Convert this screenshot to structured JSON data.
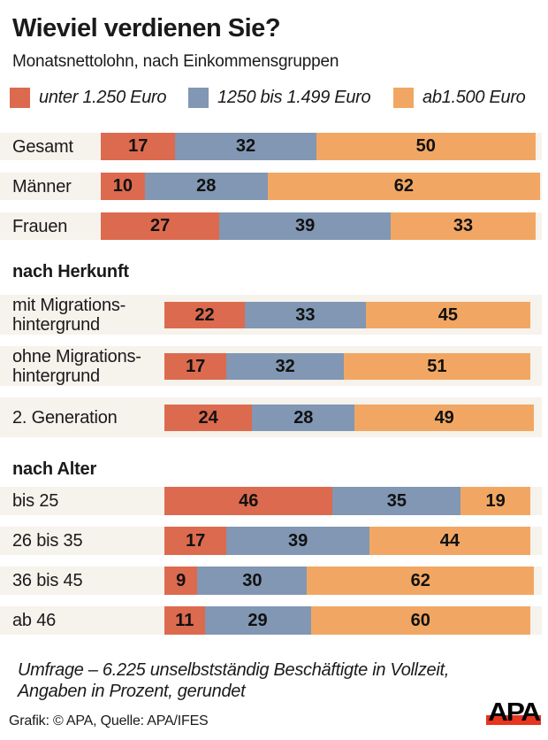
{
  "header": {
    "title": "Wieviel verdienen Sie?",
    "subtitle": "Monatsnettolohn, nach Einkommensgruppen"
  },
  "legend": {
    "items": [
      {
        "label": "unter 1.250 Euro",
        "color": "#dc6a4f"
      },
      {
        "label": "1250 bis 1.499 Euro",
        "color": "#8197b3"
      },
      {
        "label": "ab1.500 Euro",
        "color": "#f1a763"
      }
    ]
  },
  "chart_data": {
    "type": "bar",
    "subtype": "horizontal-stacked",
    "unit": "percent",
    "xlim": [
      0,
      100
    ],
    "title": "Wieviel verdienen Sie?",
    "subtitle": "Monatsnettolohn, nach Einkommensgruppen",
    "legend_position": "top",
    "series_names": [
      "unter 1.250 Euro",
      "1250 bis 1.499 Euro",
      "ab1.500 Euro"
    ],
    "series_colors": [
      "#dc6a4f",
      "#8197b3",
      "#f1a763"
    ],
    "groups": [
      {
        "heading": "",
        "rows": [
          {
            "label": "Gesamt",
            "label_lines": [
              "Gesamt"
            ],
            "values": [
              17,
              32,
              50
            ]
          },
          {
            "label": "Männer",
            "label_lines": [
              "Männer"
            ],
            "values": [
              10,
              28,
              62
            ]
          },
          {
            "label": "Frauen",
            "label_lines": [
              "Frauen"
            ],
            "values": [
              27,
              39,
              33
            ]
          }
        ]
      },
      {
        "heading": "nach Herkunft",
        "rows": [
          {
            "label": "mit Migrationshintergrund",
            "label_lines": [
              "mit Migrations-",
              "hintergrund"
            ],
            "values": [
              22,
              33,
              45
            ]
          },
          {
            "label": "ohne Migrationshintergrund",
            "label_lines": [
              "ohne Migrations-",
              "hintergrund"
            ],
            "values": [
              17,
              32,
              51
            ]
          },
          {
            "label": "2. Generation",
            "label_lines": [
              "2. Generation"
            ],
            "values": [
              24,
              28,
              49
            ]
          }
        ]
      },
      {
        "heading": "nach Alter",
        "rows": [
          {
            "label": "bis 25",
            "label_lines": [
              "bis 25"
            ],
            "values": [
              46,
              35,
              19
            ]
          },
          {
            "label": "26 bis 35",
            "label_lines": [
              "26 bis 35"
            ],
            "values": [
              17,
              39,
              44
            ]
          },
          {
            "label": "36 bis 45",
            "label_lines": [
              "36 bis 45"
            ],
            "values": [
              9,
              30,
              62
            ]
          },
          {
            "label": "ab 46",
            "label_lines": [
              "ab 46"
            ],
            "values": [
              11,
              29,
              60
            ]
          }
        ]
      }
    ]
  },
  "footer": {
    "note_lines": [
      "Umfrage – 6.225 unselbstständig Beschäftigte in Vollzeit,",
      "Angaben in Prozent, gerundet"
    ],
    "credit": "Grafik: © APA, Quelle: APA/IFES",
    "logo_text": "APA",
    "logo_bar_color": "#e8351f"
  },
  "colors": {
    "background": "#ffffff",
    "row_strip": "#f6f2ec",
    "text": "#1a1a1a"
  }
}
